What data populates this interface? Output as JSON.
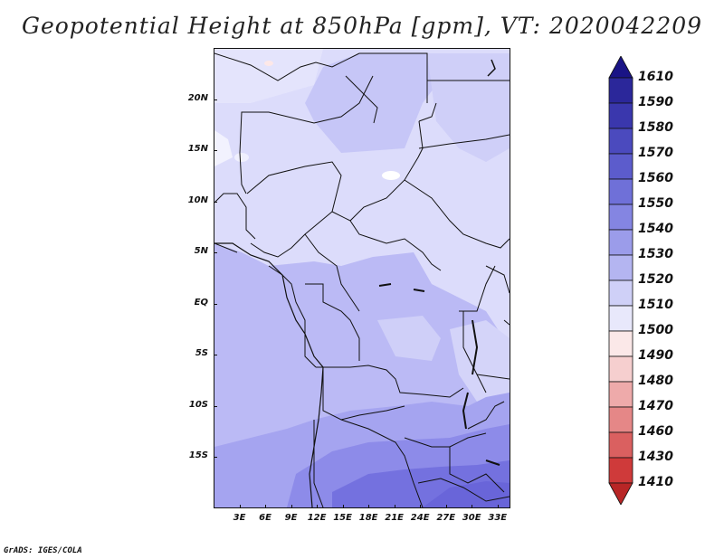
{
  "title": "Geopotential Height at 850hPa [gpm], VT: 2020042209",
  "credit": "GrADS: IGES/COLA",
  "map": {
    "variable": "Geopotential Height",
    "level": "850hPa",
    "units": "gpm",
    "valid_time": "2020042209",
    "lat_labels": [
      "20N",
      "15N",
      "10N",
      "5N",
      "EQ",
      "5S",
      "10S",
      "15S"
    ],
    "lon_labels": [
      "3E",
      "6E",
      "9E",
      "12E",
      "15E",
      "18E",
      "21E",
      "24E",
      "27E",
      "30E",
      "33E"
    ],
    "lat_values": [
      20,
      15,
      10,
      5,
      0,
      -5,
      -10,
      -15
    ],
    "lon_values": [
      3,
      6,
      9,
      12,
      15,
      18,
      21,
      24,
      27,
      30,
      33
    ],
    "lon_range": [
      0,
      34.5
    ],
    "lat_range": [
      -20,
      25
    ]
  },
  "colorbar": {
    "labels": [
      "1610",
      "1590",
      "1580",
      "1570",
      "1560",
      "1550",
      "1540",
      "1530",
      "1520",
      "1510",
      "1500",
      "1490",
      "1480",
      "1470",
      "1460",
      "1430",
      "1410"
    ],
    "colors": [
      "#1a1486",
      "#2b279a",
      "#3a37ad",
      "#4b4abe",
      "#5c5ccc",
      "#6f70d8",
      "#8485e2",
      "#9b9cea",
      "#b4b5f1",
      "#cfd0f7",
      "#e8e8fb",
      "#fbe8e8",
      "#f6cfcf",
      "#eeaaaa",
      "#e58787",
      "#da6060",
      "#cf3a3a",
      "#b82626"
    ]
  },
  "fields": {
    "colors": {
      "c1510": "#f4f4fe",
      "c1520": "#dcdcfb",
      "c1530": "#c0c0f6",
      "c1540": "#a7a6f0",
      "c1550": "#8e8cea",
      "c1560": "#7673e0",
      "border": "#111111"
    }
  }
}
